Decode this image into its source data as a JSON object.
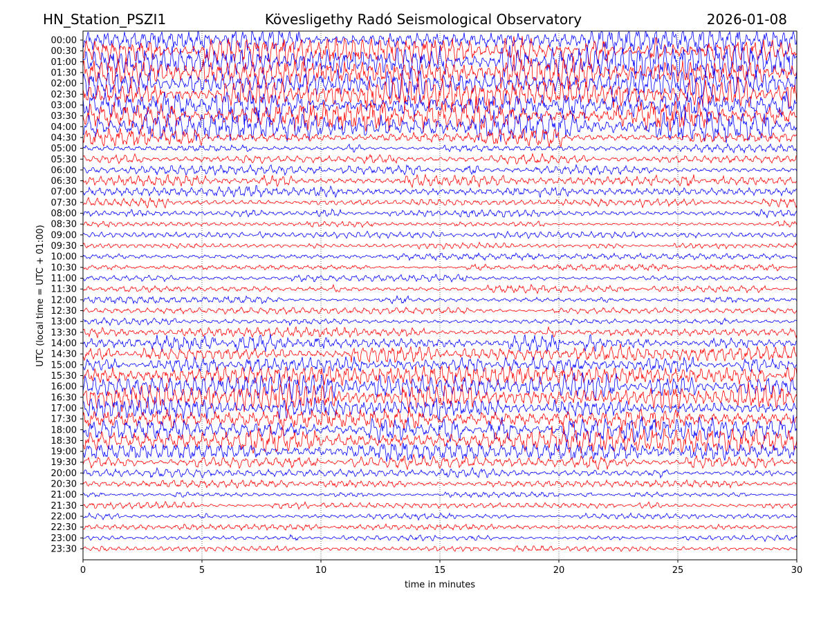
{
  "header": {
    "station": "HN_Station_PSZI1",
    "observatory": "Kövesligethy Radó Seismological Observatory",
    "date": "2026-01-08"
  },
  "colors": {
    "trace_a": "#0000ff",
    "trace_b": "#ff0000",
    "grid": "#000000",
    "background": "#ffffff"
  },
  "chart_data": {
    "type": "line",
    "xlabel": "time in minutes",
    "ylabel": "UTC (local time = UTC + 01:00)",
    "xlim": [
      0,
      30
    ],
    "x_ticks": [
      "0",
      "5",
      "10",
      "15",
      "20",
      "25",
      "30"
    ],
    "grid": "vertical dotted",
    "series": [
      {
        "label": "00:00",
        "level": 0.7
      },
      {
        "label": "00:30",
        "level": 0.85
      },
      {
        "label": "01:00",
        "level": 0.95
      },
      {
        "label": "01:30",
        "level": 1.0
      },
      {
        "label": "02:00",
        "level": 1.0
      },
      {
        "label": "02:30",
        "level": 1.0
      },
      {
        "label": "03:00",
        "level": 1.0
      },
      {
        "label": "03:30",
        "level": 0.95
      },
      {
        "label": "04:00",
        "level": 0.9
      },
      {
        "label": "04:30",
        "level": 0.55
      },
      {
        "label": "05:00",
        "level": 0.15
      },
      {
        "label": "05:30",
        "level": 0.2
      },
      {
        "label": "06:00",
        "level": 0.25
      },
      {
        "label": "06:30",
        "level": 0.3
      },
      {
        "label": "07:00",
        "level": 0.25
      },
      {
        "label": "07:30",
        "level": 0.25
      },
      {
        "label": "08:00",
        "level": 0.15
      },
      {
        "label": "08:30",
        "level": 0.12
      },
      {
        "label": "09:00",
        "level": 0.12
      },
      {
        "label": "09:30",
        "level": 0.08
      },
      {
        "label": "10:00",
        "level": 0.1
      },
      {
        "label": "10:30",
        "level": 0.1
      },
      {
        "label": "11:00",
        "level": 0.12
      },
      {
        "label": "11:30",
        "level": 0.15
      },
      {
        "label": "12:00",
        "level": 0.15
      },
      {
        "label": "12:30",
        "level": 0.1
      },
      {
        "label": "13:00",
        "level": 0.15
      },
      {
        "label": "13:30",
        "level": 0.3
      },
      {
        "label": "14:00",
        "level": 0.45
      },
      {
        "label": "14:30",
        "level": 0.45
      },
      {
        "label": "15:00",
        "level": 0.4
      },
      {
        "label": "15:30",
        "level": 0.5
      },
      {
        "label": "16:00",
        "level": 0.75
      },
      {
        "label": "16:30",
        "level": 0.8
      },
      {
        "label": "17:00",
        "level": 0.65
      },
      {
        "label": "17:30",
        "level": 0.6
      },
      {
        "label": "18:00",
        "level": 0.75
      },
      {
        "label": "18:30",
        "level": 0.75
      },
      {
        "label": "19:00",
        "level": 0.6
      },
      {
        "label": "19:30",
        "level": 0.35
      },
      {
        "label": "20:00",
        "level": 0.2
      },
      {
        "label": "20:30",
        "level": 0.12
      },
      {
        "label": "21:00",
        "level": 0.1
      },
      {
        "label": "21:30",
        "level": 0.1
      },
      {
        "label": "22:00",
        "level": 0.1
      },
      {
        "label": "22:30",
        "level": 0.1
      },
      {
        "label": "23:00",
        "level": 0.08
      },
      {
        "label": "23:30",
        "level": 0.08
      }
    ]
  }
}
